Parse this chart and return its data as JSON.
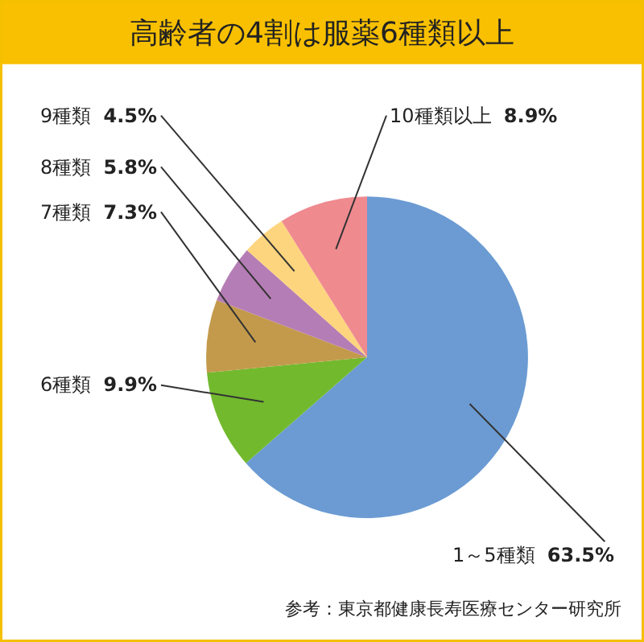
{
  "chart_data": {
    "type": "pie",
    "title": "高齢者の4割は服薬6種類以上",
    "categories": [
      "1～5種類",
      "6種類",
      "7種類",
      "8種類",
      "9種類",
      "10種類以上"
    ],
    "values": [
      63.5,
      9.9,
      7.3,
      5.8,
      4.5,
      8.9
    ],
    "value_labels": [
      "63.5%",
      "9.9%",
      "7.3%",
      "5.8%",
      "4.5%",
      "8.9%"
    ],
    "colors": [
      "#6b9bd2",
      "#72b92e",
      "#c39a4c",
      "#b57db5",
      "#fdd57e",
      "#ef8a8f"
    ],
    "legend": false,
    "annotations": [
      "参考：東京都健康長寿医療センター研究所"
    ]
  }
}
